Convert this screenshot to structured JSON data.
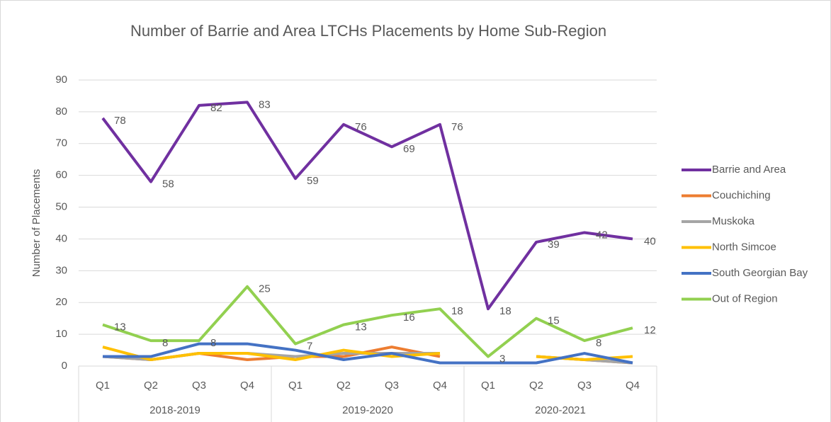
{
  "chart_data": {
    "type": "line",
    "title": "Number of Barrie and Area LTCHs Placements by Home Sub-Region",
    "y_label": "Number of Placements",
    "categories": [
      "Q1",
      "Q2",
      "Q3",
      "Q4",
      "Q1",
      "Q2",
      "Q3",
      "Q4",
      "Q1",
      "Q2",
      "Q3",
      "Q4"
    ],
    "groups": [
      "2018-2019",
      "2019-2020",
      "2020-2021"
    ],
    "ylim": [
      0,
      90
    ],
    "yticks": [
      0,
      10,
      20,
      30,
      40,
      50,
      60,
      70,
      80,
      90
    ],
    "grid": true,
    "legend": "right",
    "series": [
      {
        "name": "Barrie and Area",
        "color": "#7030a0",
        "show_labels": true,
        "values": [
          78,
          58,
          82,
          83,
          59,
          76,
          69,
          76,
          18,
          39,
          42,
          40
        ]
      },
      {
        "name": "Couchiching",
        "color": "#ed7d31",
        "show_labels": false,
        "values": [
          3,
          2,
          4,
          2,
          3,
          3,
          6,
          3,
          null,
          3,
          2,
          1
        ]
      },
      {
        "name": "Muskoka",
        "color": "#a5a5a5",
        "show_labels": false,
        "values": [
          3,
          2,
          4,
          4,
          3,
          4,
          4,
          4,
          null,
          3,
          2,
          1
        ]
      },
      {
        "name": "North Simcoe",
        "color": "#ffc000",
        "show_labels": false,
        "values": [
          6,
          2,
          4,
          4,
          2,
          5,
          3,
          4,
          null,
          3,
          2,
          3
        ]
      },
      {
        "name": "South Georgian Bay",
        "color": "#4472c4",
        "show_labels": false,
        "values": [
          3,
          3,
          7,
          7,
          5,
          2,
          4,
          1,
          1,
          1,
          4,
          1
        ]
      },
      {
        "name": "Out of Region",
        "color": "#92d050",
        "show_labels": true,
        "values": [
          13,
          8,
          8,
          25,
          7,
          13,
          16,
          18,
          3,
          15,
          8,
          12
        ]
      }
    ]
  }
}
